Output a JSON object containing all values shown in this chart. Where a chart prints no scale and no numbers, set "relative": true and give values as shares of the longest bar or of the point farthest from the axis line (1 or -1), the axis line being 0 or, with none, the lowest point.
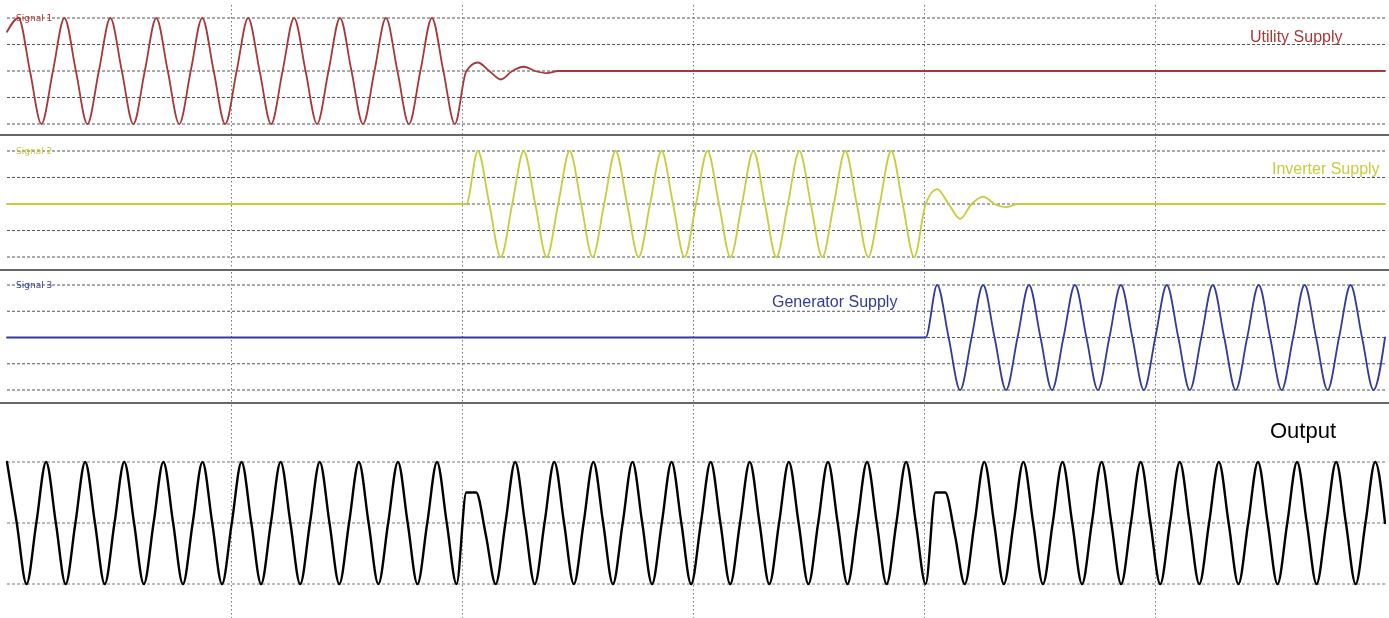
{
  "chart_data": [
    {
      "type": "line",
      "relative": true,
      "grid": true,
      "ylabel": "Signal 1",
      "categories": [
        null,
        null,
        null,
        null,
        null,
        null,
        null,
        null,
        null,
        null,
        null,
        null,
        null,
        null,
        null,
        null,
        null,
        null,
        null,
        null,
        null,
        null,
        null,
        null,
        null,
        null,
        null,
        null,
        null,
        null,
        null,
        null,
        null,
        null,
        null,
        null,
        null,
        null,
        null,
        null,
        null,
        null,
        null,
        null,
        null,
        null,
        null,
        null,
        null,
        null,
        null,
        null,
        null,
        null,
        null,
        null,
        null,
        null,
        null,
        null,
        null,
        null,
        null,
        null,
        null,
        null,
        null,
        null,
        null,
        null,
        null,
        null,
        null,
        null,
        null,
        null,
        null,
        null,
        null,
        null,
        null,
        null,
        null,
        null,
        null,
        null,
        null,
        null,
        null,
        null,
        null,
        null,
        null,
        null,
        null,
        null,
        null,
        null,
        null,
        null,
        null,
        null,
        null,
        null,
        null,
        null,
        null,
        null,
        null,
        null,
        null,
        null,
        null,
        null,
        null,
        null,
        null,
        null,
        null,
        null,
        null
      ],
      "series": [
        {
          "name": "Utility Supply",
          "color": "#a83838",
          "values": [
            0.74,
            1,
            0,
            -1,
            0,
            1,
            0,
            -1,
            0,
            1,
            0,
            -1,
            0,
            1,
            0,
            -1,
            0,
            1,
            0,
            -1,
            0,
            1,
            0,
            -1,
            0,
            1,
            0,
            -1,
            0,
            1,
            0,
            -1,
            0,
            1,
            0,
            -1,
            0,
            1,
            0,
            -1,
            0,
            0.16,
            0,
            -0.16,
            0,
            0.08,
            0,
            -0.04,
            0,
            0,
            0,
            0,
            0,
            0,
            0,
            0,
            0,
            0,
            0,
            0,
            0,
            0,
            0,
            0,
            0,
            0,
            0,
            0,
            0,
            0,
            0,
            0,
            0,
            0,
            0,
            0,
            0,
            0,
            0,
            0,
            0,
            0,
            0,
            0,
            0,
            0,
            0,
            0,
            0,
            0,
            0,
            0,
            0,
            0,
            0,
            0,
            0,
            0,
            0,
            0,
            0,
            0,
            0,
            0,
            0,
            0,
            0,
            0,
            0,
            0,
            0,
            0,
            0,
            0,
            0,
            0,
            0,
            0,
            0,
            0,
            0
          ]
        }
      ]
    },
    {
      "type": "line",
      "relative": true,
      "grid": true,
      "ylabel": "Signal 2",
      "categories": [
        null,
        null,
        null,
        null,
        null,
        null,
        null,
        null,
        null,
        null,
        null,
        null,
        null,
        null,
        null,
        null,
        null,
        null,
        null,
        null,
        null,
        null,
        null,
        null,
        null,
        null,
        null,
        null,
        null,
        null,
        null,
        null,
        null,
        null,
        null,
        null,
        null,
        null,
        null,
        null,
        null,
        null,
        null,
        null,
        null,
        null,
        null,
        null,
        null,
        null,
        null,
        null,
        null,
        null,
        null,
        null,
        null,
        null,
        null,
        null,
        null,
        null,
        null,
        null,
        null,
        null,
        null,
        null,
        null,
        null,
        null,
        null,
        null,
        null,
        null,
        null,
        null,
        null,
        null,
        null,
        null,
        null,
        null,
        null,
        null,
        null,
        null,
        null,
        null,
        null,
        null,
        null,
        null,
        null,
        null,
        null,
        null,
        null,
        null,
        null,
        null,
        null,
        null,
        null,
        null,
        null,
        null,
        null,
        null,
        null,
        null,
        null,
        null,
        null,
        null,
        null,
        null,
        null,
        null,
        null,
        null
      ],
      "series": [
        {
          "name": "Inverter Supply",
          "color": "#c8cc3c",
          "values": [
            0,
            0,
            0,
            0,
            0,
            0,
            0,
            0,
            0,
            0,
            0,
            0,
            0,
            0,
            0,
            0,
            0,
            0,
            0,
            0,
            0,
            0,
            0,
            0,
            0,
            0,
            0,
            0,
            0,
            0,
            0,
            0,
            0,
            0,
            0,
            0,
            0,
            0,
            0,
            0,
            0,
            1,
            0,
            -1,
            0,
            1,
            0,
            -1,
            0,
            1,
            0,
            -1,
            0,
            1,
            0,
            -1,
            0,
            1,
            0,
            -1,
            0,
            1,
            0,
            -1,
            0,
            1,
            0,
            -1,
            0,
            1,
            0,
            -1,
            0,
            1,
            0,
            -1,
            0,
            1,
            0,
            -1,
            0,
            0.28,
            0,
            -0.28,
            0,
            0.14,
            0,
            -0.06,
            0,
            0,
            0,
            0,
            0,
            0,
            0,
            0,
            0,
            0,
            0,
            0,
            0,
            0,
            0,
            0,
            0,
            0,
            0,
            0,
            0,
            0,
            0,
            0,
            0,
            0,
            0,
            0,
            0,
            0,
            0,
            0,
            0
          ]
        }
      ]
    },
    {
      "type": "line",
      "relative": true,
      "grid": true,
      "ylabel": "Signal 3",
      "categories": [
        null,
        null,
        null,
        null,
        null,
        null,
        null,
        null,
        null,
        null,
        null,
        null,
        null,
        null,
        null,
        null,
        null,
        null,
        null,
        null,
        null,
        null,
        null,
        null,
        null,
        null,
        null,
        null,
        null,
        null,
        null,
        null,
        null,
        null,
        null,
        null,
        null,
        null,
        null,
        null,
        null,
        null,
        null,
        null,
        null,
        null,
        null,
        null,
        null,
        null,
        null,
        null,
        null,
        null,
        null,
        null,
        null,
        null,
        null,
        null,
        null,
        null,
        null,
        null,
        null,
        null,
        null,
        null,
        null,
        null,
        null,
        null,
        null,
        null,
        null,
        null,
        null,
        null,
        null,
        null,
        null,
        null,
        null,
        null,
        null,
        null,
        null,
        null,
        null,
        null,
        null,
        null,
        null,
        null,
        null,
        null,
        null,
        null,
        null,
        null,
        null,
        null,
        null,
        null,
        null,
        null,
        null,
        null,
        null,
        null,
        null,
        null,
        null,
        null,
        null,
        null,
        null,
        null,
        null,
        null,
        null
      ],
      "series": [
        {
          "name": "Generator Supply",
          "color": "#333a99",
          "values": [
            0,
            0,
            0,
            0,
            0,
            0,
            0,
            0,
            0,
            0,
            0,
            0,
            0,
            0,
            0,
            0,
            0,
            0,
            0,
            0,
            0,
            0,
            0,
            0,
            0,
            0,
            0,
            0,
            0,
            0,
            0,
            0,
            0,
            0,
            0,
            0,
            0,
            0,
            0,
            0,
            0,
            0,
            0,
            0,
            0,
            0,
            0,
            0,
            0,
            0,
            0,
            0,
            0,
            0,
            0,
            0,
            0,
            0,
            0,
            0,
            0,
            0,
            0,
            0,
            0,
            0,
            0,
            0,
            0,
            0,
            0,
            0,
            0,
            0,
            0,
            0,
            0,
            0,
            0,
            0,
            0,
            1,
            0,
            -1,
            0,
            1,
            0,
            -1,
            0,
            1,
            0,
            -1,
            0,
            1,
            0,
            -1,
            0,
            1,
            0,
            -1,
            0,
            1,
            0,
            -1,
            0,
            1,
            0,
            -1,
            0,
            1,
            0,
            -1,
            0,
            1,
            0,
            -1,
            0,
            1,
            0,
            -1,
            0
          ]
        }
      ]
    },
    {
      "type": "line",
      "relative": true,
      "grid": true,
      "categories": [
        null,
        null,
        null,
        null,
        null,
        null,
        null,
        null,
        null,
        null,
        null,
        null,
        null,
        null,
        null,
        null,
        null,
        null,
        null,
        null,
        null,
        null,
        null,
        null,
        null,
        null,
        null,
        null,
        null,
        null,
        null,
        null,
        null,
        null,
        null,
        null,
        null,
        null,
        null,
        null,
        null,
        null,
        null,
        null,
        null,
        null,
        null,
        null,
        null,
        null,
        null,
        null,
        null,
        null,
        null,
        null,
        null,
        null,
        null,
        null,
        null,
        null,
        null,
        null,
        null,
        null,
        null,
        null,
        null,
        null,
        null,
        null,
        null,
        null,
        null,
        null,
        null,
        null,
        null,
        null,
        null,
        null,
        null,
        null,
        null,
        null,
        null,
        null,
        null,
        null,
        null,
        null,
        null,
        null,
        null,
        null,
        null,
        null,
        null,
        null,
        null,
        null,
        null,
        null,
        null,
        null,
        null,
        null,
        null,
        null,
        null,
        null,
        null,
        null,
        null,
        null,
        null,
        null,
        null,
        null,
        null,
        null,
        null,
        null,
        null,
        null,
        null,
        null,
        null,
        null,
        null,
        null,
        null,
        null,
        null,
        null,
        null,
        null,
        null,
        null,
        null,
        null
      ],
      "series": [
        {
          "name": "Output",
          "color": "#000000",
          "values": [
            1,
            0,
            -1,
            0,
            1,
            0,
            -1,
            0,
            1,
            0,
            -1,
            0,
            1,
            0,
            -1,
            0,
            1,
            0,
            -1,
            0,
            1,
            0,
            -1,
            0,
            1,
            0,
            -1,
            0,
            1,
            0,
            -1,
            0,
            1,
            0,
            -1,
            0,
            1,
            0,
            -1,
            0,
            1,
            0,
            -1,
            0,
            1,
            0,
            -1,
            0.5,
            0.5,
            -0.2,
            -1,
            0,
            1,
            0,
            -1,
            0,
            1,
            0,
            -1,
            0,
            1,
            0,
            -1,
            0,
            1,
            0,
            -1,
            0,
            1,
            0,
            -1,
            0,
            1,
            0,
            -1,
            0,
            1,
            0,
            -1,
            0,
            1,
            0,
            -1,
            0,
            1,
            0,
            -1,
            0,
            1,
            0,
            -1,
            0,
            1,
            0,
            -1,
            0.5,
            0.5,
            -0.2,
            -1,
            0,
            1,
            0,
            -1,
            0,
            1,
            0,
            -1,
            0,
            1,
            0,
            -1,
            0,
            1,
            0,
            -1,
            0,
            1,
            0,
            -1,
            0,
            1,
            0,
            -1,
            0,
            1,
            0,
            -1,
            0,
            1,
            0,
            -1,
            0,
            1,
            0,
            -1,
            0,
            1,
            0,
            -1,
            0,
            1,
            0
          ]
        }
      ]
    }
  ]
}
